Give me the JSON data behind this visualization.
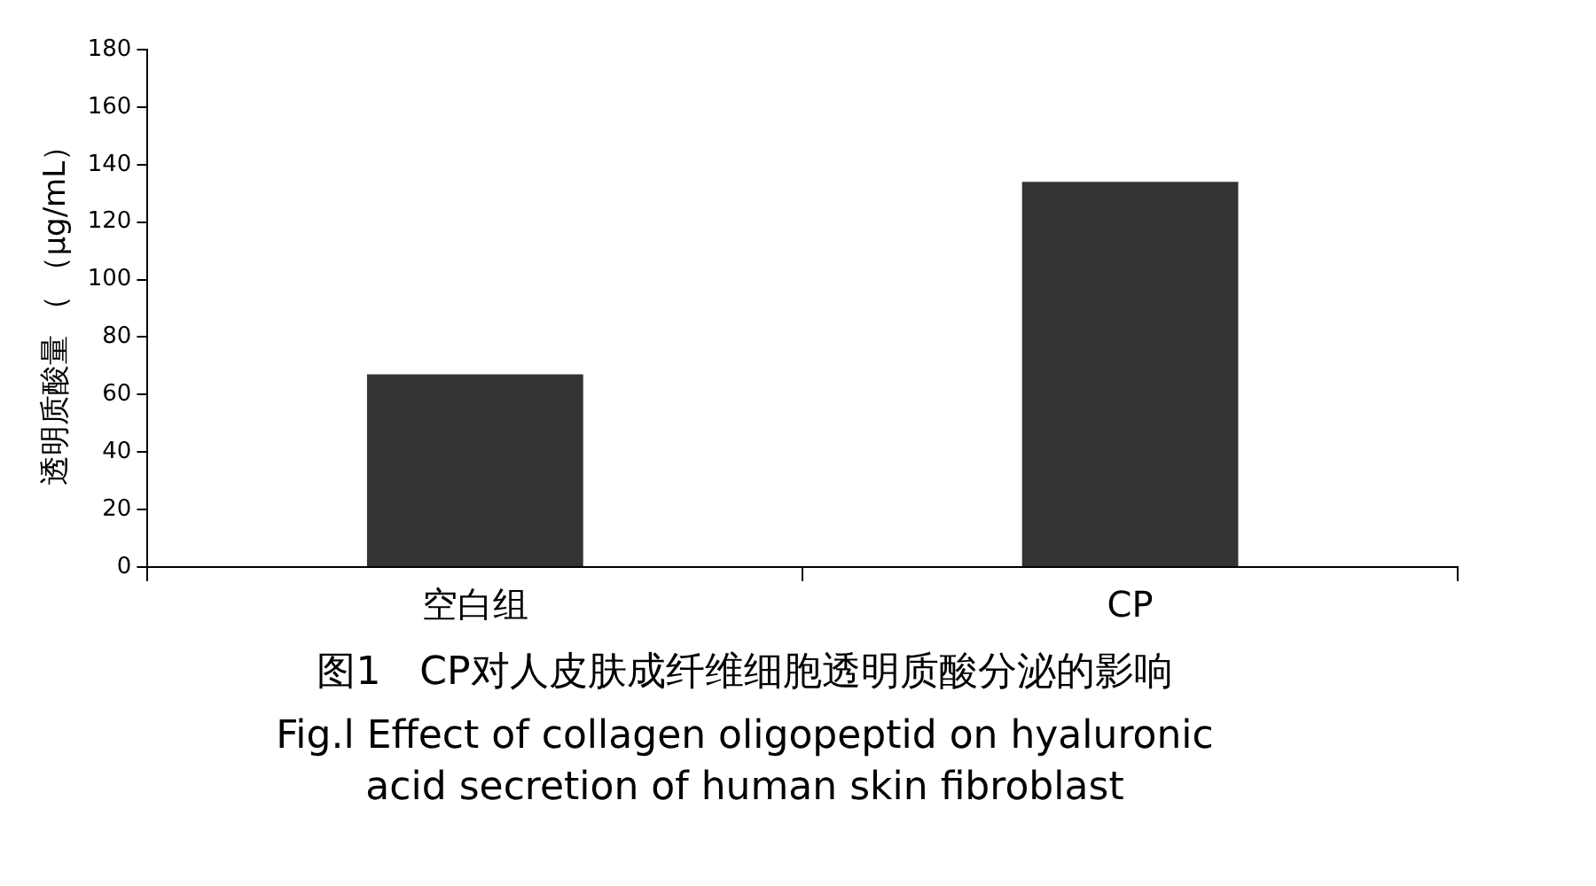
{
  "chart_data": {
    "type": "bar",
    "title": "图1　CP对人皮肤成纤维细胞透明质酸分泌的影响",
    "subtitle": "Fig.l Effect of collagen oligopeptid on hyaluronic acid secretion of human skin fibroblast",
    "ylabel": "透明质酸量 （ （μg/mL）",
    "categories": [
      "空白组",
      "CP"
    ],
    "values": [
      67,
      134
    ],
    "color": "#333333",
    "ylim": [
      0,
      180
    ],
    "yticks": [
      0,
      20,
      40,
      60,
      80,
      100,
      120,
      140,
      160,
      180
    ],
    "grid": false,
    "legend": false
  }
}
